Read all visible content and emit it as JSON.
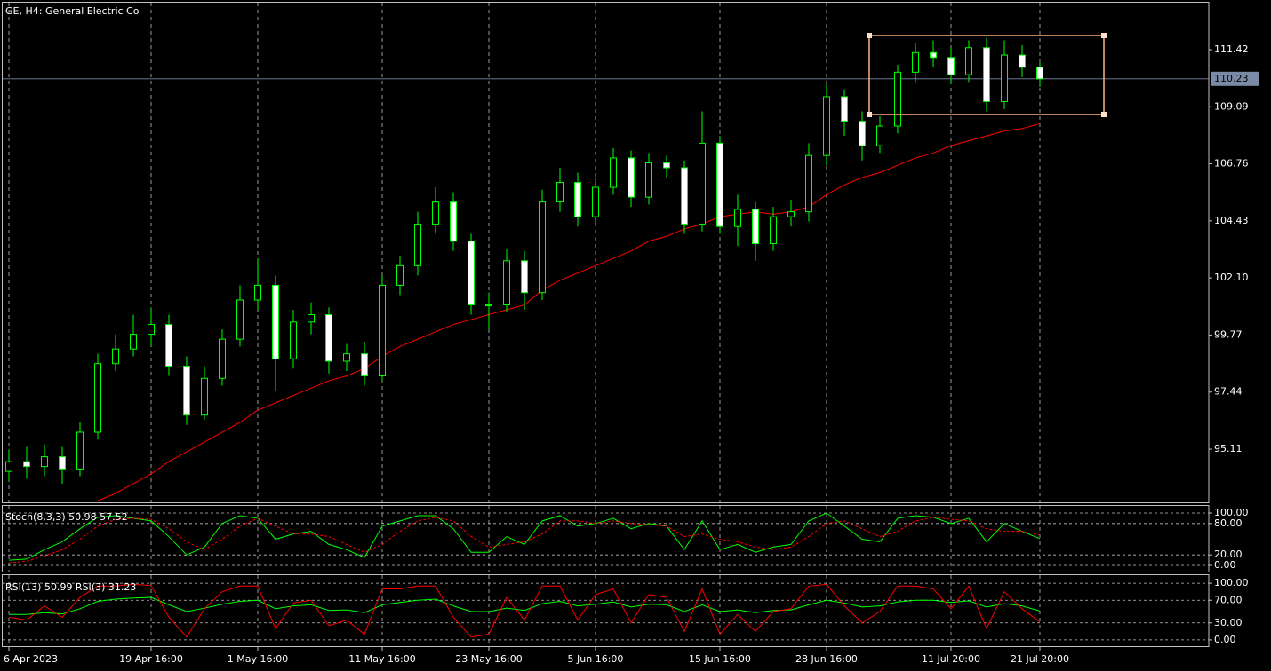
{
  "chart_data": [
    {
      "type": "candlestick",
      "title": "GE, H4:  General Electric Co",
      "categories": [
        "6 Apr 2023",
        null,
        null,
        null,
        null,
        null,
        null,
        null,
        "19 Apr 16:00",
        null,
        null,
        null,
        null,
        null,
        "1 May 16:00",
        null,
        null,
        null,
        null,
        null,
        null,
        "11 May 16:00",
        null,
        null,
        null,
        null,
        null,
        "23 May 16:00",
        null,
        null,
        null,
        null,
        null,
        "5 Jun 16:00",
        null,
        null,
        null,
        null,
        null,
        null,
        "15 Jun 16:00",
        null,
        null,
        null,
        null,
        null,
        "28 Jun 16:00",
        null,
        null,
        null,
        null,
        null,
        null,
        "11 Jul 20:00",
        null,
        null,
        null,
        null,
        "21 Jul 20:00"
      ],
      "open": [
        94.2,
        94.6,
        94.4,
        94.8,
        94.3,
        95.8,
        98.6,
        99.2,
        99.8,
        100.2,
        98.5,
        96.5,
        98.0,
        99.6,
        101.2,
        101.8,
        98.8,
        100.3,
        100.6,
        98.7,
        99.0,
        98.1,
        101.8,
        102.6,
        104.3,
        105.2,
        103.6,
        101.0,
        101.0,
        102.8,
        101.5,
        105.2,
        106.0,
        104.6,
        105.8,
        107.0,
        105.4,
        106.8,
        106.6,
        104.3,
        107.6,
        104.2,
        104.9,
        103.5,
        104.6,
        104.8,
        107.1,
        109.5,
        108.5,
        107.5,
        108.3,
        110.5,
        111.3,
        111.1,
        110.4,
        111.5,
        109.3,
        111.2,
        110.7
      ],
      "high": [
        95.1,
        95.2,
        95.3,
        95.2,
        96.2,
        99.0,
        99.8,
        100.6,
        100.9,
        100.6,
        98.9,
        98.5,
        100.0,
        101.8,
        102.9,
        102.2,
        100.8,
        101.1,
        100.9,
        99.4,
        99.5,
        102.2,
        103.0,
        104.8,
        105.8,
        105.6,
        103.9,
        101.5,
        103.3,
        103.2,
        105.7,
        106.6,
        106.4,
        106.2,
        107.4,
        107.3,
        107.2,
        107.1,
        106.9,
        108.9,
        107.9,
        105.5,
        105.2,
        105.0,
        105.3,
        107.6,
        110.0,
        109.8,
        108.9,
        108.7,
        110.8,
        111.7,
        111.8,
        111.5,
        111.8,
        111.9,
        111.8,
        111.6,
        110.9
      ],
      "low": [
        93.8,
        93.9,
        94.0,
        93.7,
        94.0,
        95.5,
        98.3,
        98.9,
        99.3,
        98.1,
        96.1,
        96.3,
        97.7,
        99.3,
        100.8,
        97.5,
        98.4,
        99.8,
        98.2,
        98.3,
        97.7,
        97.9,
        101.4,
        102.2,
        103.9,
        103.2,
        100.6,
        100.0,
        100.7,
        100.8,
        101.2,
        104.8,
        104.2,
        104.3,
        105.5,
        105.0,
        105.1,
        106.2,
        103.9,
        104.0,
        103.9,
        103.4,
        102.8,
        103.2,
        104.2,
        104.4,
        106.7,
        107.9,
        106.9,
        107.2,
        108.0,
        110.1,
        110.7,
        110.0,
        110.1,
        108.9,
        109.0,
        110.3,
        109.9
      ],
      "close": [
        94.6,
        94.4,
        94.8,
        94.3,
        95.8,
        98.6,
        99.2,
        99.8,
        100.2,
        98.5,
        96.5,
        98.0,
        99.6,
        101.2,
        101.8,
        98.8,
        100.3,
        100.6,
        98.7,
        99.0,
        98.1,
        101.8,
        102.6,
        104.3,
        105.2,
        103.6,
        101.0,
        101.0,
        102.8,
        101.5,
        105.2,
        106.0,
        104.6,
        105.8,
        107.0,
        105.4,
        106.8,
        106.6,
        104.3,
        107.6,
        104.2,
        104.9,
        103.5,
        104.6,
        104.8,
        107.1,
        109.5,
        108.5,
        107.5,
        108.3,
        110.5,
        111.3,
        111.1,
        110.4,
        111.5,
        109.3,
        111.2,
        110.7,
        110.23
      ],
      "up_color": "#000000",
      "down_color": "#ffffff",
      "edge_color": "#00ff00",
      "ma": {
        "color": "#ff0000",
        "values": [
          null,
          null,
          null,
          null,
          null,
          93.0,
          93.3,
          93.7,
          94.1,
          94.6,
          95.0,
          95.4,
          95.8,
          96.2,
          96.7,
          97.0,
          97.3,
          97.6,
          97.9,
          98.1,
          98.4,
          98.9,
          99.3,
          99.6,
          99.9,
          100.2,
          100.4,
          100.6,
          100.8,
          101.0,
          101.6,
          102.0,
          102.3,
          102.6,
          102.9,
          103.2,
          103.6,
          103.8,
          104.1,
          104.3,
          104.6,
          104.7,
          104.8,
          104.7,
          104.8,
          105.0,
          105.5,
          105.9,
          106.2,
          106.4,
          106.7,
          107.0,
          107.2,
          107.5,
          107.7,
          107.9,
          108.1,
          108.2,
          108.4
        ]
      },
      "last_price": 110.23,
      "last_price_color": "#7b8aa6",
      "ylim": [
        92.9,
        113.34
      ],
      "yticks": [
        95.11,
        97.44,
        99.77,
        {
          "value": 102.1,
          "label": "102.10"
        },
        104.43,
        106.76,
        109.09,
        111.42
      ],
      "grid": true
    },
    {
      "type": "line",
      "title": "Stoch(8,3,3) 50.98 57.52",
      "series": [
        {
          "color": "#00ff00",
          "values": [
            10,
            12,
            30,
            45,
            70,
            92,
            95,
            90,
            85,
            55,
            20,
            35,
            80,
            95,
            90,
            50,
            60,
            65,
            40,
            30,
            15,
            75,
            85,
            95,
            95,
            70,
            25,
            25,
            55,
            40,
            85,
            95,
            75,
            80,
            90,
            70,
            80,
            75,
            30,
            85,
            30,
            40,
            25,
            35,
            40,
            85,
            100,
            75,
            50,
            45,
            90,
            95,
            92,
            80,
            90,
            45,
            80,
            65,
            50.98
          ]
        },
        {
          "color": "#ff0000",
          "dashed": true,
          "values": [
            5,
            8,
            18,
            30,
            50,
            75,
            88,
            90,
            88,
            70,
            45,
            30,
            50,
            75,
            90,
            75,
            60,
            60,
            55,
            40,
            25,
            40,
            65,
            85,
            92,
            85,
            55,
            35,
            40,
            45,
            60,
            85,
            85,
            80,
            85,
            80,
            78,
            75,
            55,
            60,
            50,
            45,
            35,
            30,
            35,
            55,
            80,
            85,
            70,
            55,
            65,
            85,
            92,
            88,
            85,
            70,
            65,
            65,
            57.52
          ]
        }
      ],
      "ylim": [
        -13.6,
        113.6
      ],
      "yticks": [
        {
          "value": 100,
          "label": "100.00"
        },
        {
          "value": 80,
          "label": "80.00"
        },
        {
          "value": 20,
          "label": "20.00"
        },
        {
          "value": 0,
          "label": "0.00"
        }
      ]
    },
    {
      "type": "line",
      "title": "RSI(13) 50.99 RSI(3) 31.23",
      "series": [
        {
          "color": "#00ff00",
          "values": [
            45,
            45,
            48,
            46,
            55,
            68,
            72,
            74,
            75,
            62,
            50,
            56,
            63,
            68,
            70,
            55,
            60,
            62,
            52,
            53,
            48,
            62,
            66,
            70,
            72,
            60,
            50,
            50,
            56,
            52,
            64,
            68,
            60,
            63,
            67,
            58,
            63,
            62,
            50,
            62,
            50,
            53,
            48,
            52,
            53,
            62,
            70,
            65,
            58,
            60,
            67,
            70,
            70,
            66,
            69,
            58,
            64,
            60,
            50.99
          ]
        },
        {
          "color": "#ff0000",
          "values": [
            40,
            35,
            60,
            40,
            75,
            95,
            95,
            98,
            96,
            40,
            5,
            55,
            85,
            95,
            95,
            20,
            65,
            70,
            25,
            35,
            10,
            90,
            90,
            95,
            95,
            40,
            5,
            10,
            75,
            35,
            95,
            95,
            35,
            80,
            90,
            30,
            80,
            75,
            15,
            90,
            10,
            45,
            15,
            50,
            55,
            95,
            98,
            60,
            30,
            50,
            95,
            95,
            90,
            55,
            95,
            20,
            85,
            55,
            31.23
          ]
        }
      ],
      "ylim": [
        -12.7,
        114.3
      ],
      "yticks": [
        {
          "value": 100,
          "label": "100.00"
        },
        {
          "value": 70,
          "label": "70.00"
        },
        {
          "value": 30,
          "label": "30.00"
        },
        {
          "value": 0,
          "label": "0.00"
        }
      ]
    }
  ]
}
